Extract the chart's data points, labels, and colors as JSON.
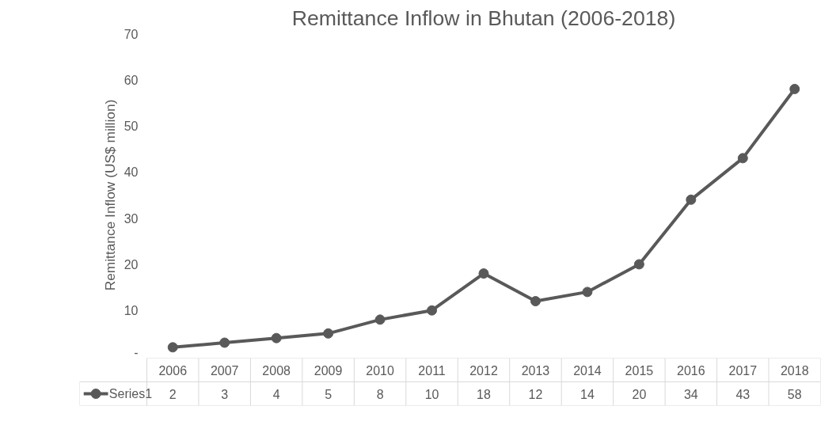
{
  "chart_data": {
    "type": "line",
    "title": "Remittance Inflow in Bhutan (2006-2018)",
    "ylabel": "Remittance Inflow (US$ million)",
    "categories": [
      "2006",
      "2007",
      "2008",
      "2009",
      "2010",
      "2011",
      "2012",
      "2013",
      "2014",
      "2015",
      "2016",
      "2017",
      "2018"
    ],
    "series": [
      {
        "name": "Series1",
        "color": "#595959",
        "values": [
          2,
          3,
          4,
          5,
          8,
          10,
          18,
          12,
          14,
          20,
          34,
          43,
          58
        ]
      }
    ],
    "ylim": [
      0,
      70
    ],
    "yticks": [
      {
        "value": 0,
        "label": "-"
      },
      10,
      20,
      30,
      40,
      50,
      60,
      70
    ],
    "data_labels": true,
    "legend": "bottom",
    "marker": "circle",
    "line_style": "solid"
  }
}
